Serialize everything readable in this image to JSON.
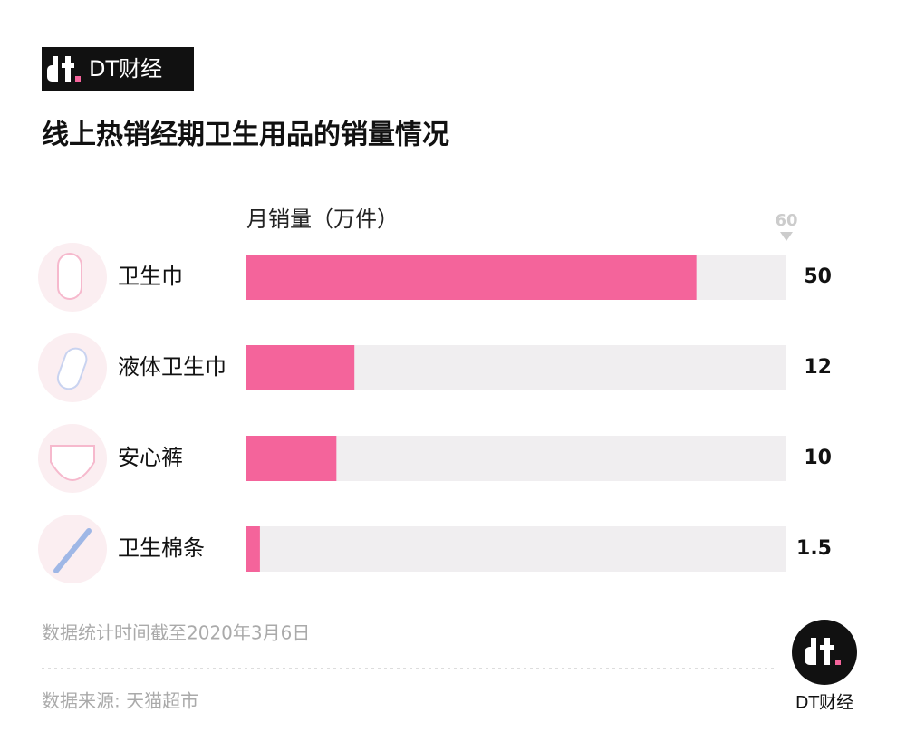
{
  "header": {
    "logo_text": "DT财经"
  },
  "chart_data": {
    "type": "bar",
    "orientation": "horizontal",
    "title": "线上热销经期卫生用品的销量情况",
    "x_label": "月销量（万件）",
    "categories": [
      "卫生巾",
      "液体卫生巾",
      "安心裤",
      "卫生棉条"
    ],
    "values": [
      50,
      12,
      10,
      1.5
    ],
    "color": "#f4649b",
    "xlim": [
      0,
      60
    ],
    "xticks": [
      60
    ]
  },
  "footer": {
    "date_note": "数据统计时间截至2020年3月6日",
    "source": "数据来源: 天猫超市",
    "logo_text": "DT财经"
  }
}
